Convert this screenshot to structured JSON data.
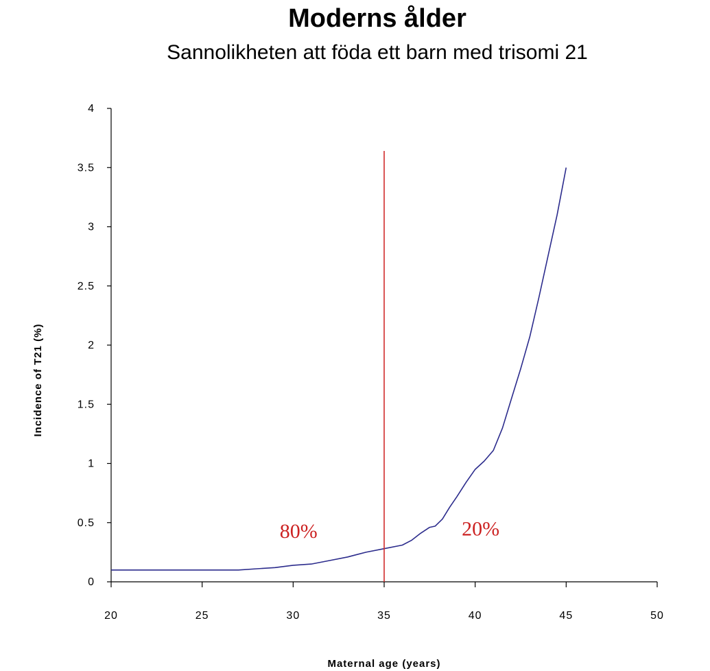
{
  "chart_data": {
    "type": "line",
    "title": "Moderns ålder",
    "subtitle": "Sannolikheten att föda ett barn med trisomi 21",
    "xlabel": "Maternal age (years)",
    "ylabel": "Incidence of T21 (%)",
    "xlim": [
      20,
      50
    ],
    "ylim": [
      0,
      4
    ],
    "xticks": [
      "20",
      "25",
      "30",
      "35",
      "40",
      "45",
      "50"
    ],
    "yticks": [
      "0",
      "0.5",
      "1",
      "1.5",
      "2",
      "2.5",
      "3",
      "3.5",
      "4"
    ],
    "grid": false,
    "series": [
      {
        "color": "#2b2b8c",
        "x": [
          20,
          22,
          24,
          26,
          27,
          28,
          29,
          30,
          31,
          32,
          33,
          33.5,
          34,
          35,
          36,
          36.5,
          37,
          37.5,
          37.8,
          38.2,
          38.6,
          39,
          39.5,
          40,
          40.5,
          41,
          41.5,
          42,
          42.5,
          43,
          43.5,
          44,
          44.5,
          45
        ],
        "y": [
          0.1,
          0.1,
          0.1,
          0.1,
          0.1,
          0.11,
          0.12,
          0.14,
          0.15,
          0.18,
          0.21,
          0.23,
          0.25,
          0.28,
          0.31,
          0.35,
          0.41,
          0.46,
          0.47,
          0.53,
          0.63,
          0.72,
          0.84,
          0.95,
          1.02,
          1.11,
          1.3,
          1.55,
          1.8,
          2.07,
          2.4,
          2.75,
          3.1,
          3.5
        ]
      }
    ],
    "reference_line": {
      "x": 35,
      "color": "#d02a2a"
    },
    "annotations": [
      {
        "text": "80%",
        "x": 30.3,
        "y": 0.43
      },
      {
        "text": "20%",
        "x": 40.3,
        "y": 0.45
      }
    ]
  }
}
